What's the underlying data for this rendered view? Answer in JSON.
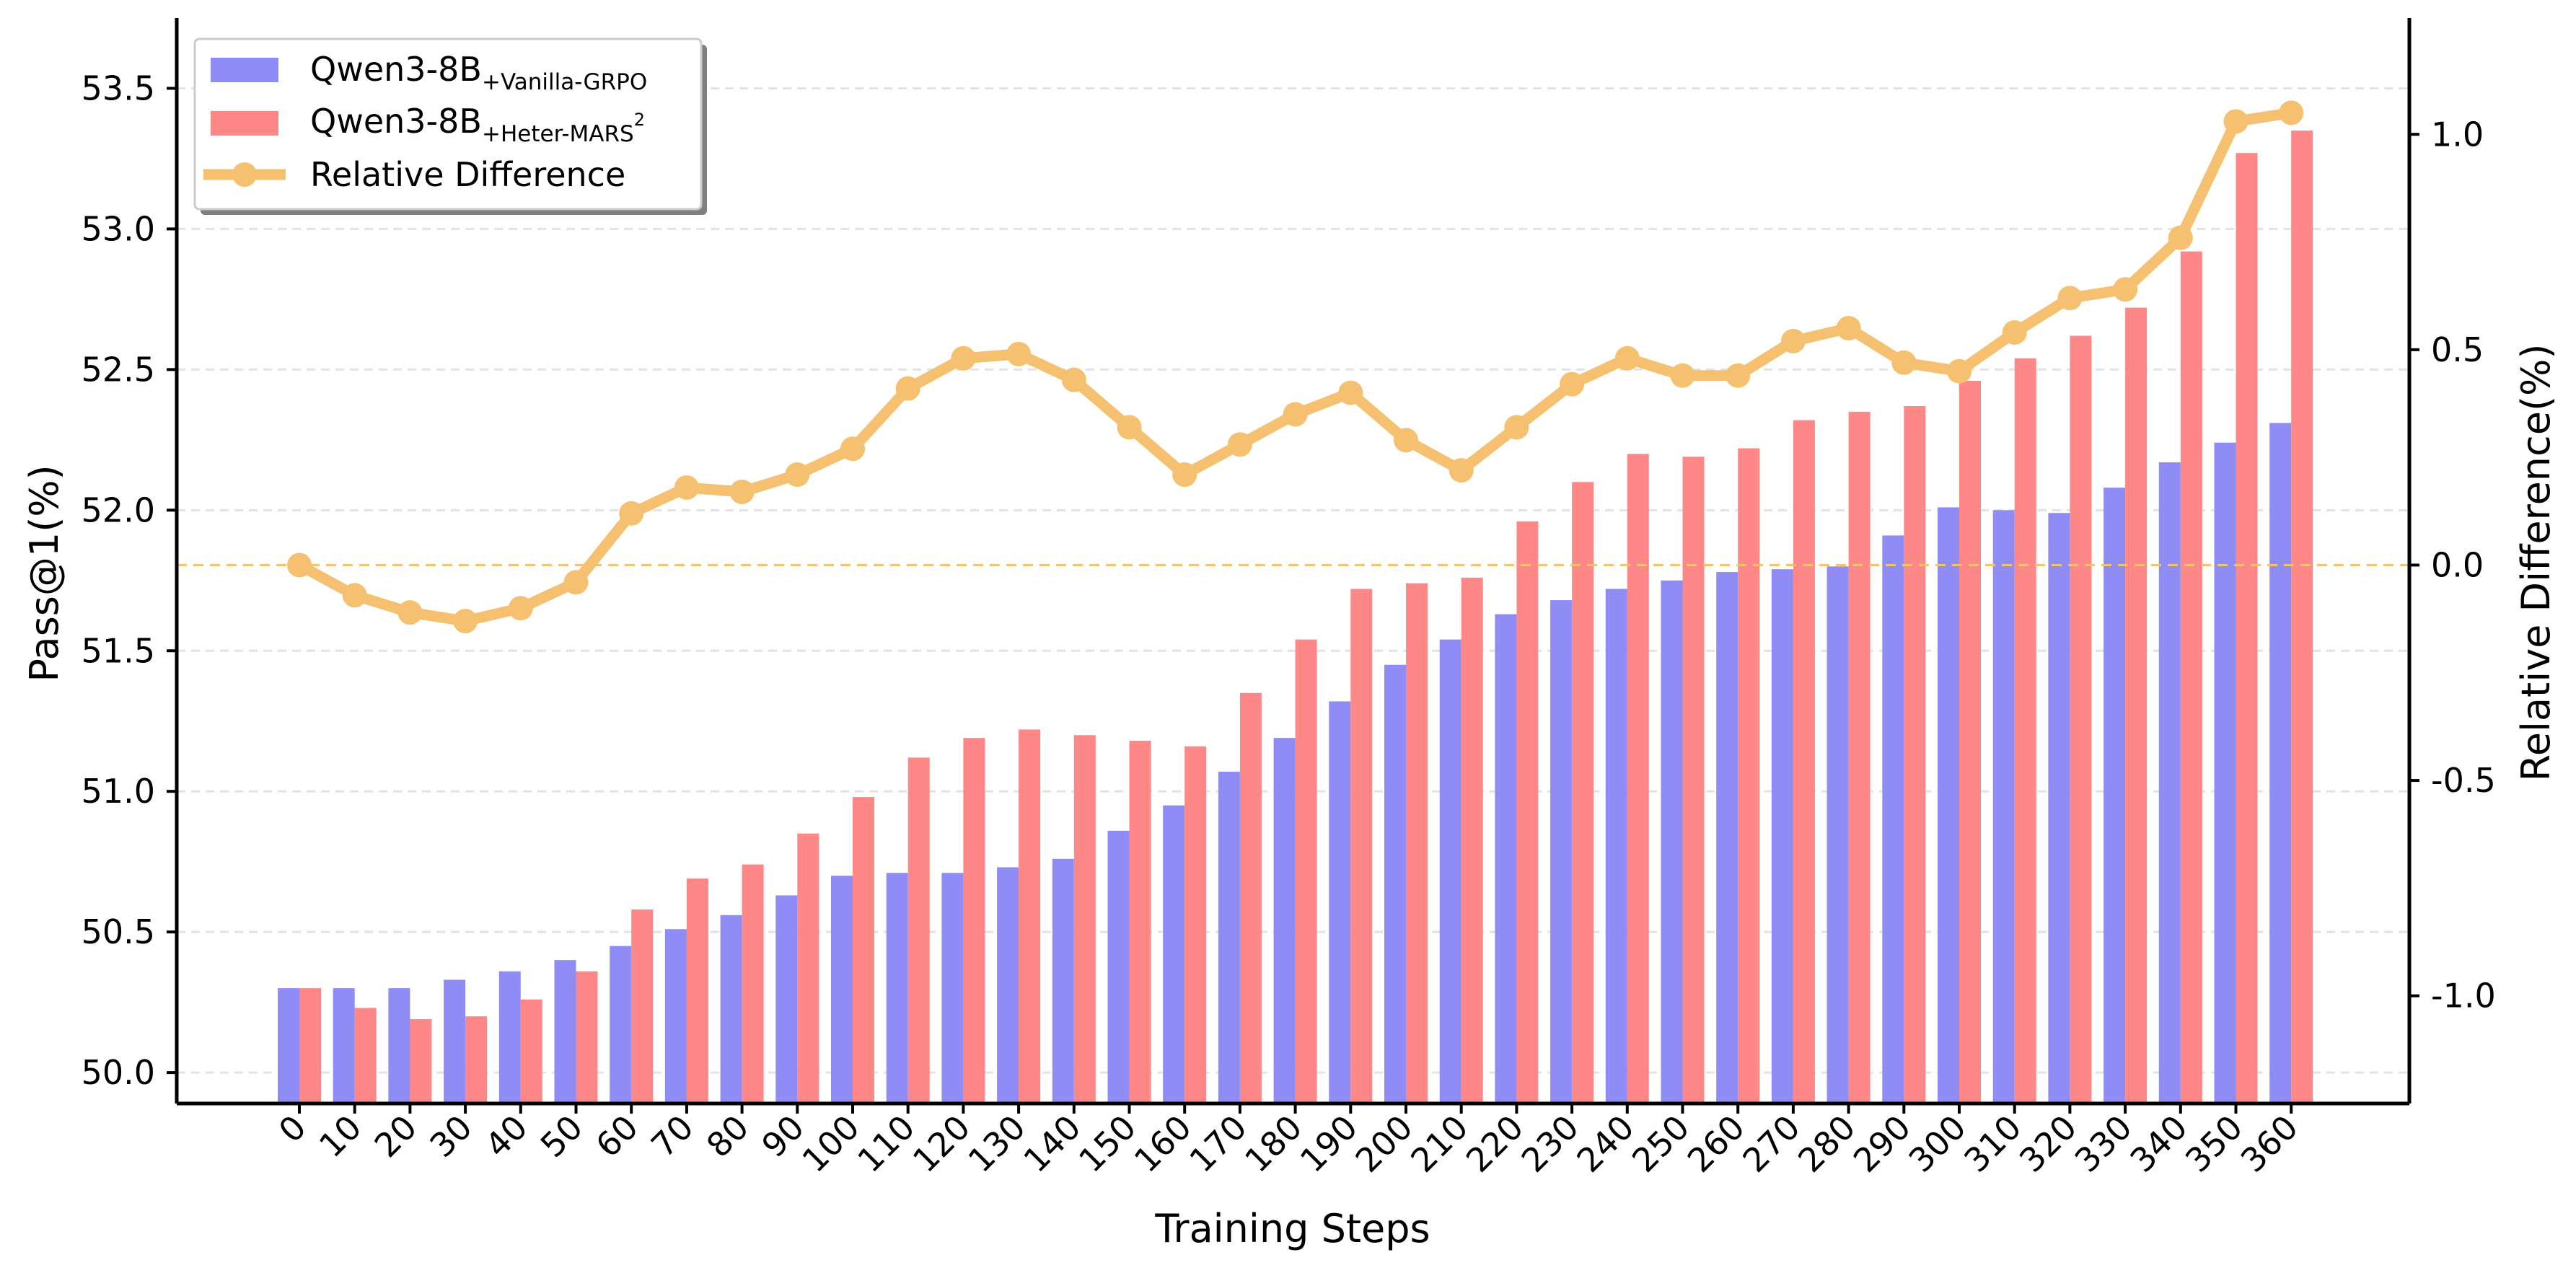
{
  "chart_data": {
    "type": "bar",
    "xlabel": "Training Steps",
    "ylabel": "Pass@1(%)",
    "y2label": "Relative Difference(%)",
    "categories": [
      "0",
      "10",
      "20",
      "30",
      "40",
      "50",
      "60",
      "70",
      "80",
      "90",
      "100",
      "110",
      "120",
      "130",
      "140",
      "150",
      "160",
      "170",
      "180",
      "190",
      "200",
      "210",
      "220",
      "230",
      "240",
      "250",
      "260",
      "270",
      "280",
      "290",
      "300",
      "310",
      "320",
      "330",
      "340",
      "350",
      "360"
    ],
    "ylim": [
      49.89,
      53.75
    ],
    "y2lim": [
      -1.25,
      1.27
    ],
    "yticks": [
      "50.0",
      "50.5",
      "51.0",
      "51.5",
      "52.0",
      "52.5",
      "53.0",
      "53.5"
    ],
    "y2ticks": [
      "-1.0",
      "-0.5",
      "0.0",
      "0.5",
      "1.0"
    ],
    "series": [
      {
        "name": "Qwen3-8B",
        "name_sub": "+Vanilla-GRPO",
        "color": "#8f8cf6",
        "axis": "left",
        "kind": "bar",
        "values": [
          50.3,
          50.3,
          50.3,
          50.33,
          50.36,
          50.4,
          50.45,
          50.51,
          50.56,
          50.63,
          50.7,
          50.71,
          50.71,
          50.73,
          50.76,
          50.86,
          50.95,
          51.07,
          51.19,
          51.32,
          51.45,
          51.54,
          51.63,
          51.68,
          51.72,
          51.75,
          51.78,
          51.79,
          51.8,
          51.91,
          52.01,
          52.0,
          51.99,
          52.08,
          52.17,
          52.24,
          52.31
        ]
      },
      {
        "name": "Qwen3-8B",
        "name_sub": "+Heter-MARS",
        "name_sup": "2",
        "color": "#fe8888",
        "axis": "left",
        "kind": "bar",
        "values": [
          50.3,
          50.23,
          50.19,
          50.2,
          50.26,
          50.36,
          50.58,
          50.69,
          50.74,
          50.85,
          50.98,
          51.12,
          51.19,
          51.22,
          51.2,
          51.18,
          51.16,
          51.35,
          51.54,
          51.72,
          51.74,
          51.76,
          51.96,
          52.1,
          52.2,
          52.19,
          52.22,
          52.32,
          52.35,
          52.37,
          52.46,
          52.54,
          52.62,
          52.72,
          52.92,
          53.27,
          53.35
        ]
      },
      {
        "name": "Relative Difference",
        "color": "#f5c170",
        "axis": "right",
        "kind": "line",
        "values": [
          0.0,
          -0.07,
          -0.11,
          -0.13,
          -0.1,
          -0.04,
          0.12,
          0.18,
          0.17,
          0.21,
          0.27,
          0.41,
          0.48,
          0.49,
          0.43,
          0.32,
          0.21,
          0.28,
          0.35,
          0.4,
          0.29,
          0.22,
          0.32,
          0.42,
          0.48,
          0.44,
          0.44,
          0.52,
          0.55,
          0.47,
          0.45,
          0.54,
          0.62,
          0.64,
          0.76,
          1.03,
          1.05
        ]
      }
    ],
    "reference_line": {
      "axis": "right",
      "value": 0.0,
      "color": "#f5c170",
      "style": "dashed"
    },
    "grid": "horizontal-dashed",
    "legend_position": "top-left"
  }
}
